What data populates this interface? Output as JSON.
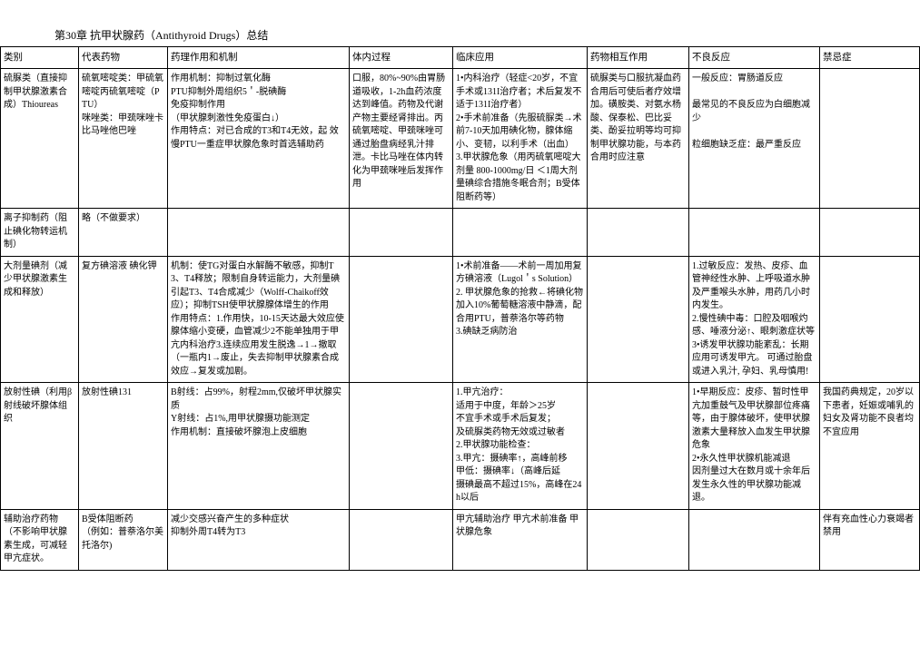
{
  "title": "第30章 抗甲状腺药（Antithyroid Drugs）总结",
  "columns": [
    "类别",
    "代表药物",
    "药理作用和机制",
    "体内过程",
    "临床应用",
    "药物相互作用",
    "不良反应",
    "禁忌症"
  ],
  "rows": [
    {
      "c0": "硫脲类（直接抑制甲状腺激素合成）Thioureas",
      "c1": "硫氧嘧啶类：甲硫氧嘧啶丙硫氧嘧啶（PTU）\n咪唑类：甲巯咪唑卡比马唑他巴唑",
      "c2": "作用机制：抑制过氧化酶\nPTU抑制外周组织5＇-脱碘酶\n免疫抑制作用\n（甲状腺刺激性免疫蛋白↓）\n作用特点：对已合成的T3和T4无效，起 效慢PTU一重症甲状腺危象时首选辅助药",
      "c3": "口服，80%~90%由胃肠道吸收，1-2h血药浓度达到峰值。药物及代谢产物主要经肾排出。丙硫氧嘧啶、甲巯咪唑可通过胎盘病经乳汁排泄。卡比马唑在体内转化为甲巯咪唑后发挥作用",
      "c4": "1•内科治疗（轻症<20岁，不宜手术或131I治疗者；术后复发不适于131I治疗者）\n2•手术前准备（先服硫脲类→术前7-10天加用碘化物，腺体缩小、变韧，以利手术（出血）\n3.甲状腺危象（用丙硫氧嘧啶大剂量 800-1000mg/日 ＜1周大剂量碘综合措施冬眠合剂；B受体阻断药等）",
      "c5": "硫脲类与口服抗凝血药合用后可使后者疗效增加。磺胺类、对氨水杨酸、保泰松、巴比妥类、酚妥拉明等均可抑制甲状腺功能，与本药合用时应注意",
      "c6": "一般反应：胃肠道反应\n\n最常见的不良反应为白细胞减少\n\n粒细胞缺乏症：最严重反应",
      "c7": ""
    },
    {
      "c0": "离子抑制药（阻止碘化物转运机制）",
      "c1": "略（不做要求）",
      "c2": "",
      "c3": "",
      "c4": "",
      "c5": "",
      "c6": "",
      "c7": ""
    },
    {
      "c0": "大剂量碘剂（减少甲状腺激素生成和释放）",
      "c1": "复方碘溶液 碘化钾",
      "c2": "机制：使TG对蛋白水解酶不敏感，抑制T3、T4释放；限制自身转运能力，大剂量碘引起T3、T4合成减少（Wolff-Chaikoff效应）；抑制TSH使甲状腺腺体增生的作用\n作用特点：1.作用快，10-15天达最大效应使腺体缩小变硬，血管减少2不能单独用于甲亢内科治疗3.连续应用发生脱逸→1→撤取（一瓶内1→废止，失去抑制甲状腺素合成效应→复发或加剧。",
      "c3": "",
      "c4": "1•术前准备——术前一周加用复方碘溶液（Lugol＇s Solution）\n2. 甲状腺危象的抢救←将碘化物加入10%葡萄糖溶液中静滴，配合用PTU，普萘洛尔等药物\n3.碘缺乏病防治",
      "c5": "",
      "c6": "1.过敏反应：发热、皮疹、血管神经性水肿、上呼吸道水肿及严重喉头水肿，用药几小时内发生。\n2.慢性碘中毒：口腔及咽喉灼感、唾液分泌↑、眼刺激症状等\n3•诱发甲状腺功能紊乱：长期应用可诱发甲亢。 可通过胎盘或进入乳汁, 孕妇、乳母慎用!",
      "c7": ""
    },
    {
      "c0": "放射性碘（利用β射线破坏腺体组织",
      "c1": "放射性碘131",
      "c2": "B射线：占99%，射程2mm,仅破坏甲状腺实质\nY射线：占1%,用甲状腺摄功能测定\n作用机制：直接破坏腺泡上皮细胞",
      "c3": "",
      "c4": "1.甲亢治疗：\n适用于中度，年龄＞25岁\n不宜手术或手术后复发；\n及硫脲类药物无效或过敏者\n2.甲状腺功能检查：\n3.甲亢：摄碘率↑，高峰前移\n甲低：摄碘率↓（高峰后延\n摄碘最高不超过15%，高峰在24h以后",
      "c5": "",
      "c6": "1•早期反应：皮疹、暂时性甲亢加重鼓气及甲状腺部位疼痛等，由于腺体破坏，使甲状腺激素大量释放入血发生甲状腺危象\n2•永久性甲状腺机能减退\n因剂量过大在数月或十余年后发生永久性的甲状腺功能减退。",
      "c7": "我国药典规定，20岁以下患者，妊娠或哺乳的妇女及肾功能不良者均不宜应用"
    },
    {
      "c0": "辅助治疗药物（不影响甲状腺素生成，可减轻甲亢症状。",
      "c1": "B受体阻断药\n（例如：普萘洛尔美托洛尔)",
      "c2": "减少交感兴奋产生的多种症状\n抑制外周T4转为T3",
      "c3": "",
      "c4": "甲亢辅助治疗 甲亢术前准备 甲状腺危象",
      "c5": "",
      "c6": "",
      "c7": "伴有充血性心力衰竭者禁用"
    }
  ]
}
